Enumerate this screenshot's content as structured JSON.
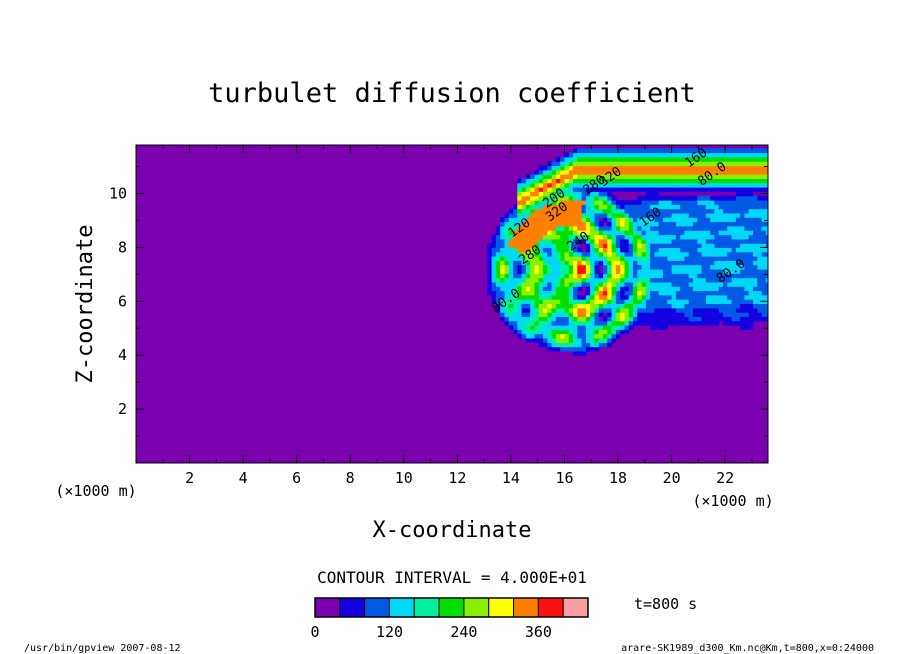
{
  "chart_data": {
    "type": "heatmap",
    "title": "turbulet diffusion coefficient",
    "xlabel": "X-coordinate",
    "ylabel": "Z-coordinate",
    "x_unit_label": "(×1000 m)",
    "y_unit_label": "(×1000 m)",
    "xlim": [
      0,
      23.6
    ],
    "ylim": [
      0,
      11.8
    ],
    "x_ticks": [
      "2",
      "4",
      "6",
      "8",
      "10",
      "12",
      "14",
      "16",
      "18",
      "20",
      "22"
    ],
    "y_ticks": [
      "2",
      "4",
      "6",
      "8",
      "10"
    ],
    "contour_interval_text": "CONTOUR INTERVAL = 4.000E+01",
    "time_label": "t=800 s",
    "colorbar": {
      "levels": [
        0,
        40,
        80,
        120,
        160,
        200,
        240,
        280,
        320,
        360,
        400
      ],
      "tick_labels": [
        "0",
        "120",
        "240",
        "360"
      ],
      "colors": [
        "#7b00b0",
        "#1400e0",
        "#005ae6",
        "#00d8f8",
        "#00f0a0",
        "#00e000",
        "#88f000",
        "#ffff00",
        "#ff8000",
        "#ff1010",
        "#f8a0a0"
      ]
    },
    "contour_labels": [
      "80.0",
      "80.0",
      "80.0",
      "120",
      "160",
      "160",
      "200",
      "240",
      "280",
      "280",
      "320",
      "320"
    ],
    "features": [
      {
        "kind": "layer",
        "x": [
          14.2,
          23.6
        ],
        "z": [
          10.2,
          11.6
        ],
        "value": 320
      },
      {
        "kind": "vortex",
        "cx": 16.3,
        "cz": 7.2,
        "r": 2.5,
        "peak": 360
      },
      {
        "kind": "wake",
        "x": [
          17.5,
          23.6
        ],
        "z": [
          4.5,
          10.2
        ],
        "value": 120
      }
    ],
    "background_value": 0
  },
  "footer": {
    "left": "/usr/bin/gpview   2007-08-12",
    "right": "arare-SK1989_d300_Km.nc@Km,t=800,x=0:24000"
  },
  "colors": {
    "background": "#7b00b0",
    "text": "#000000"
  }
}
